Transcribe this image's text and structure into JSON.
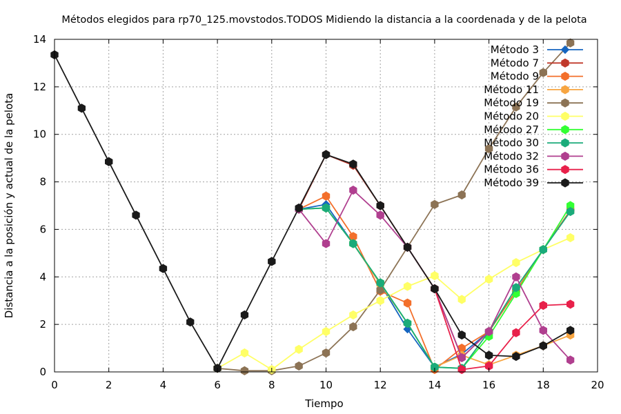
{
  "chart_data": {
    "type": "line",
    "title": "Métodos elegidos para rp70_125.movstodos.TODOS Midiendo la distancia a la coordenada y de la pelota",
    "xlabel": "Tiempo",
    "ylabel": "Distancia a la posición y actual de la pelota",
    "xlim": [
      0,
      20
    ],
    "ylim": [
      0,
      14
    ],
    "xticks": [
      0,
      2,
      4,
      6,
      8,
      10,
      12,
      14,
      16,
      18,
      20
    ],
    "yticks": [
      0,
      2,
      4,
      6,
      8,
      10,
      12,
      14
    ],
    "grid": true,
    "legend_position": "top-right",
    "series": [
      {
        "name": "Método 3",
        "color": "#1565c0",
        "marker": "diamond",
        "x": [
          9,
          10,
          11,
          12,
          13,
          14,
          15,
          16,
          17,
          18,
          19
        ],
        "y": [
          6.85,
          7.05,
          5.4,
          3.7,
          1.8,
          0.2,
          0.75,
          1.7,
          3.4,
          5.15,
          6.8
        ]
      },
      {
        "name": "Método 7",
        "color": "#c0392b",
        "marker": "hexagon",
        "x": [
          9,
          10,
          11,
          12,
          13,
          14,
          15,
          16,
          17,
          18,
          19
        ],
        "y": [
          6.85,
          9.15,
          8.7,
          7.0,
          5.25,
          3.5,
          0.6,
          1.7,
          3.4,
          5.15,
          6.8
        ]
      },
      {
        "name": "Método 9",
        "color": "#f36f2b",
        "marker": "hexagon",
        "x": [
          9,
          10,
          11,
          12,
          13,
          14,
          15,
          16,
          17,
          18,
          19
        ],
        "y": [
          6.85,
          7.4,
          5.7,
          3.4,
          2.9,
          0.1,
          1.0,
          1.7,
          3.4,
          5.15,
          6.8
        ]
      },
      {
        "name": "Método 11",
        "color": "#f7a541",
        "marker": "hexagon",
        "x": [
          9,
          10,
          11,
          12,
          13,
          14,
          15,
          16,
          17,
          18,
          19
        ],
        "y": [
          6.85,
          6.9,
          5.4,
          3.7,
          2.05,
          0.2,
          0.7,
          0.3,
          0.7,
          1.1,
          1.55
        ]
      },
      {
        "name": "Método 19",
        "color": "#8c7355",
        "marker": "hexagon",
        "x": [
          6,
          7,
          8,
          9,
          10,
          11,
          12,
          13,
          14,
          15,
          16,
          17,
          18,
          19
        ],
        "y": [
          0.15,
          0.05,
          0.05,
          0.25,
          0.8,
          1.9,
          3.45,
          5.25,
          7.05,
          7.45,
          9.4,
          11.15,
          12.6,
          13.85
        ]
      },
      {
        "name": "Método 20",
        "color": "#ffff66",
        "marker": "hexagon",
        "x": [
          6,
          7,
          8,
          9,
          10,
          11,
          12,
          13,
          14,
          15,
          16,
          17,
          18,
          19
        ],
        "y": [
          0.15,
          0.8,
          0.1,
          0.95,
          1.7,
          2.4,
          3.0,
          3.6,
          4.05,
          3.05,
          3.9,
          4.6,
          5.15,
          5.65
        ]
      },
      {
        "name": "Método 27",
        "color": "#33ff33",
        "marker": "hexagon",
        "x": [
          9,
          10,
          11,
          12,
          13,
          14,
          15,
          16,
          17,
          18,
          19
        ],
        "y": [
          6.85,
          6.9,
          5.4,
          3.75,
          2.05,
          0.2,
          0.15,
          1.5,
          3.3,
          5.15,
          7.0
        ]
      },
      {
        "name": "Método 30",
        "color": "#1aab7a",
        "marker": "hexagon",
        "x": [
          9,
          10,
          11,
          12,
          13,
          14,
          15,
          16,
          17,
          18,
          19
        ],
        "y": [
          6.85,
          6.9,
          5.4,
          3.75,
          2.05,
          0.2,
          0.15,
          1.7,
          3.55,
          5.15,
          6.75
        ]
      },
      {
        "name": "Método 32",
        "color": "#b03f8f",
        "marker": "hexagon",
        "x": [
          9,
          10,
          11,
          12,
          13,
          14,
          15,
          16,
          17,
          18,
          19
        ],
        "y": [
          6.85,
          5.4,
          7.65,
          6.6,
          5.25,
          3.5,
          0.6,
          1.7,
          4.0,
          1.75,
          0.5
        ]
      },
      {
        "name": "Método 36",
        "color": "#e8204a",
        "marker": "hexagon",
        "x": [
          14,
          15,
          16,
          17,
          18,
          19
        ],
        "y": [
          3.5,
          0.1,
          0.25,
          1.65,
          2.8,
          2.85
        ]
      },
      {
        "name": "Método 39",
        "color": "#1a1a1a",
        "marker": "hexagon",
        "x": [
          0,
          1,
          2,
          3,
          4,
          5,
          6,
          7,
          8,
          9,
          10,
          11,
          12,
          13,
          14,
          15,
          16,
          17,
          18,
          19
        ],
        "y": [
          13.35,
          11.1,
          8.85,
          6.6,
          4.35,
          2.1,
          0.15,
          2.4,
          4.65,
          6.9,
          9.15,
          8.75,
          7.0,
          5.25,
          3.5,
          1.55,
          0.7,
          0.65,
          1.1,
          1.75
        ]
      }
    ]
  }
}
